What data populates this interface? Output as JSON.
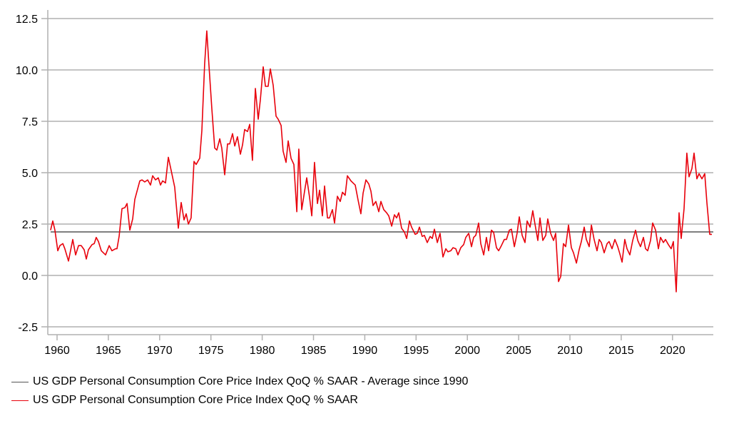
{
  "chart_data": {
    "type": "line",
    "title": "",
    "xlabel": "",
    "ylabel": "",
    "xlim": [
      1959.2,
      2024.0
    ],
    "ylim": [
      -2.5,
      12.5
    ],
    "grid": true,
    "legend_position": "bottom-left",
    "x_ticks": [
      "1960",
      "1965",
      "1970",
      "1975",
      "1980",
      "1985",
      "1990",
      "1995",
      "2000",
      "2005",
      "2010",
      "2015",
      "2020"
    ],
    "y_ticks": [
      "12.5",
      "10.0",
      "7.5",
      "5.0",
      "2.5",
      "0.0",
      "-2.5"
    ],
    "series": [
      {
        "name": "US GDP Personal Consumption Core Price Index QoQ % SAAR - Average since 1990",
        "color": "#555555",
        "kind": "constant",
        "value": 2.12,
        "x_start": 1959.37
      },
      {
        "name": "US GDP Personal Consumption Core Price Index QoQ % SAAR",
        "color": "#e8000b",
        "x": [
          1959.37,
          1959.58,
          1959.79,
          1960.07,
          1960.28,
          1960.56,
          1960.76,
          1961.11,
          1961.53,
          1961.81,
          1962.09,
          1962.36,
          1962.64,
          1962.85,
          1963.06,
          1963.41,
          1963.62,
          1963.82,
          1964.03,
          1964.31,
          1964.73,
          1965.08,
          1965.35,
          1965.7,
          1965.84,
          1966.05,
          1966.33,
          1966.61,
          1966.82,
          1967.09,
          1967.37,
          1967.58,
          1968.07,
          1968.28,
          1968.55,
          1968.83,
          1969.11,
          1969.32,
          1969.6,
          1969.87,
          1970.08,
          1970.29,
          1970.57,
          1970.85,
          1971.13,
          1971.47,
          1971.82,
          1972.1,
          1972.38,
          1972.59,
          1972.8,
          1973.07,
          1973.35,
          1973.56,
          1973.84,
          1973.91,
          1974.12,
          1974.39,
          1974.6,
          1974.81,
          1975.09,
          1975.37,
          1975.58,
          1975.86,
          1976.06,
          1976.34,
          1976.62,
          1976.83,
          1977.11,
          1977.32,
          1977.59,
          1977.87,
          1978.08,
          1978.29,
          1978.57,
          1978.78,
          1979.05,
          1979.33,
          1979.61,
          1979.82,
          1980.1,
          1980.31,
          1980.58,
          1980.79,
          1981.07,
          1981.35,
          1981.56,
          1981.84,
          1982.04,
          1982.32,
          1982.53,
          1982.81,
          1983.09,
          1983.37,
          1983.57,
          1983.85,
          1984.13,
          1984.34,
          1984.62,
          1984.83,
          1985.1,
          1985.38,
          1985.59,
          1985.87,
          1986.08,
          1986.36,
          1986.56,
          1986.84,
          1987.05,
          1987.33,
          1987.61,
          1987.82,
          1988.09,
          1988.3,
          1988.65,
          1988.86,
          1989.07,
          1989.35,
          1989.62,
          1989.83,
          1990.11,
          1990.39,
          1990.6,
          1990.81,
          1991.08,
          1991.36,
          1991.57,
          1991.85,
          1992.13,
          1992.34,
          1992.62,
          1992.89,
          1993.1,
          1993.31,
          1993.59,
          1993.87,
          1994.08,
          1994.35,
          1994.56,
          1994.91,
          1995.12,
          1995.33,
          1995.6,
          1995.81,
          1996.09,
          1996.37,
          1996.58,
          1996.79,
          1997.07,
          1997.34,
          1997.62,
          1997.9,
          1998.11,
          1998.39,
          1998.6,
          1998.87,
          1999.08,
          1999.36,
          1999.64,
          1999.85,
          2000.13,
          2000.4,
          2000.61,
          2000.82,
          2001.1,
          2001.31,
          2001.59,
          2001.86,
          2002.07,
          2002.35,
          2002.56,
          2002.84,
          2003.05,
          2003.32,
          2003.6,
          2003.81,
          2004.09,
          2004.3,
          2004.58,
          2004.85,
          2005.06,
          2005.34,
          2005.62,
          2005.83,
          2006.11,
          2006.38,
          2006.59,
          2006.87,
          2007.08,
          2007.36,
          2007.64,
          2007.84,
          2008.12,
          2008.4,
          2008.61,
          2008.89,
          2009.1,
          2009.37,
          2009.58,
          2009.86,
          2010.14,
          2010.35,
          2010.63,
          2010.9,
          2011.11,
          2011.39,
          2011.6,
          2011.88,
          2012.09,
          2012.36,
          2012.64,
          2012.85,
          2013.06,
          2013.34,
          2013.62,
          2013.82,
          2014.1,
          2014.38,
          2014.66,
          2014.87,
          2015.08,
          2015.35,
          2015.56,
          2015.84,
          2016.12,
          2016.4,
          2016.61,
          2016.88,
          2017.16,
          2017.37,
          2017.58,
          2017.86,
          2018.07,
          2018.35,
          2018.62,
          2018.83,
          2019.11,
          2019.32,
          2019.6,
          2019.87,
          2020.08,
          2020.36,
          2020.64,
          2020.85,
          2021.13,
          2021.4,
          2021.61,
          2021.89,
          2022.1,
          2022.38,
          2022.59,
          2022.87,
          2023.14,
          2023.35,
          2023.63,
          2023.84
        ],
        "values": [
          2.2,
          2.65,
          2.2,
          1.2,
          1.45,
          1.55,
          1.3,
          0.7,
          1.75,
          1.0,
          1.45,
          1.45,
          1.25,
          0.8,
          1.25,
          1.5,
          1.55,
          1.85,
          1.65,
          1.2,
          1.0,
          1.45,
          1.2,
          1.3,
          1.3,
          1.9,
          3.25,
          3.3,
          3.5,
          2.2,
          2.75,
          3.7,
          4.6,
          4.65,
          4.55,
          4.65,
          4.4,
          4.85,
          4.65,
          4.75,
          4.4,
          4.6,
          4.5,
          5.75,
          5.1,
          4.3,
          2.3,
          3.55,
          2.7,
          3.0,
          2.5,
          2.8,
          5.55,
          5.4,
          5.65,
          5.7,
          7.05,
          10.3,
          11.9,
          10.2,
          8.1,
          6.2,
          6.1,
          6.65,
          6.2,
          4.9,
          6.4,
          6.4,
          6.9,
          6.3,
          6.75,
          5.9,
          6.35,
          7.1,
          7.0,
          7.35,
          5.6,
          9.1,
          7.6,
          8.55,
          10.15,
          9.2,
          9.2,
          10.05,
          9.25,
          7.75,
          7.6,
          7.3,
          6.05,
          5.5,
          6.55,
          5.7,
          5.4,
          3.1,
          6.15,
          3.2,
          4.1,
          4.75,
          3.8,
          2.9,
          5.5,
          3.5,
          4.15,
          2.9,
          4.35,
          2.8,
          2.8,
          3.2,
          2.55,
          3.85,
          3.6,
          4.05,
          3.9,
          4.85,
          4.6,
          4.5,
          4.4,
          3.65,
          3.0,
          4.0,
          4.65,
          4.45,
          4.1,
          3.4,
          3.6,
          3.1,
          3.6,
          3.2,
          3.05,
          2.9,
          2.4,
          2.95,
          2.8,
          3.05,
          2.3,
          2.1,
          1.8,
          2.65,
          2.35,
          2.0,
          2.05,
          2.35,
          1.9,
          1.95,
          1.6,
          1.9,
          1.8,
          2.25,
          1.6,
          2.05,
          0.9,
          1.3,
          1.15,
          1.2,
          1.35,
          1.3,
          1.0,
          1.35,
          1.5,
          1.85,
          2.05,
          1.4,
          1.85,
          1.95,
          2.55,
          1.55,
          1.0,
          1.85,
          1.2,
          2.2,
          2.1,
          1.35,
          1.2,
          1.45,
          1.75,
          1.75,
          2.2,
          2.25,
          1.4,
          2.05,
          2.85,
          1.95,
          1.6,
          2.65,
          2.35,
          3.15,
          2.5,
          1.7,
          2.8,
          1.7,
          1.95,
          2.75,
          2.05,
          1.7,
          2.05,
          -0.3,
          -0.05,
          1.55,
          1.4,
          2.45,
          1.35,
          1.1,
          0.6,
          1.25,
          1.65,
          2.35,
          1.75,
          1.4,
          2.45,
          1.75,
          1.2,
          1.75,
          1.6,
          1.1,
          1.55,
          1.65,
          1.3,
          1.75,
          1.4,
          1.05,
          0.65,
          1.75,
          1.3,
          1.0,
          1.7,
          2.2,
          1.7,
          1.4,
          1.85,
          1.3,
          1.2,
          1.7,
          2.55,
          2.2,
          1.3,
          1.85,
          1.6,
          1.75,
          1.5,
          1.3,
          1.65,
          -0.8,
          3.05,
          1.8,
          3.25,
          5.95,
          4.8,
          5.2,
          5.95,
          4.7,
          4.95,
          4.7,
          4.95,
          3.55,
          2.0,
          2.0
        ]
      }
    ]
  },
  "legend": {
    "items": [
      {
        "label": "US GDP Personal Consumption Core Price Index QoQ % SAAR - Average since 1990",
        "color": "#555555"
      },
      {
        "label": "US GDP Personal Consumption Core Price Index QoQ % SAAR",
        "color": "#e8000b"
      }
    ]
  }
}
